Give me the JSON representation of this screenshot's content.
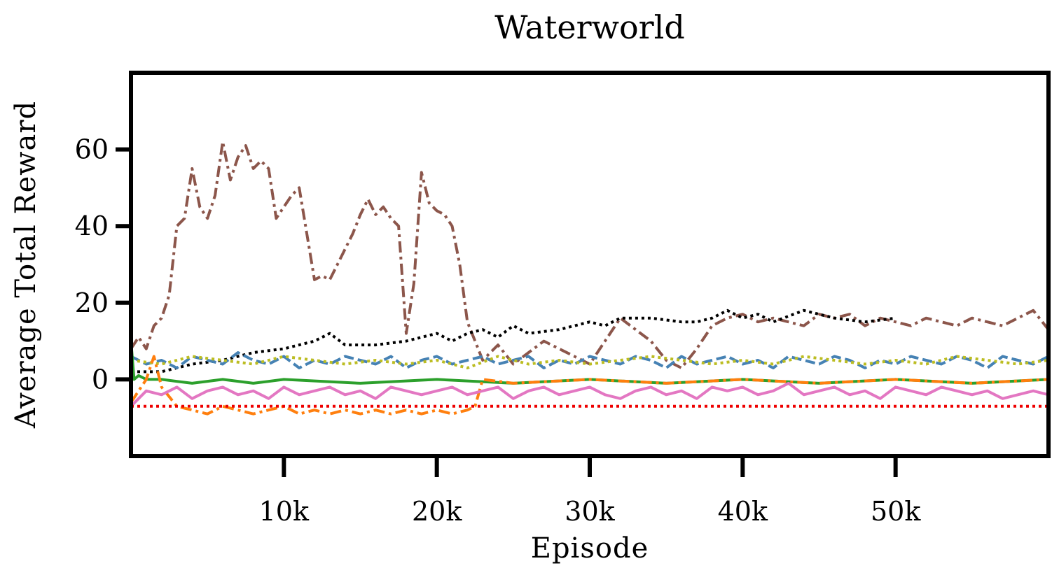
{
  "chart_data": {
    "type": "line",
    "title": "Waterworld",
    "xlabel": "Episode",
    "ylabel": "Average Total Reward",
    "xlim": [
      0,
      60000
    ],
    "ylim": [
      -20,
      80
    ],
    "x_ticks": [
      {
        "value": 10000,
        "label": "10k"
      },
      {
        "value": 20000,
        "label": "20k"
      },
      {
        "value": 30000,
        "label": "30k"
      },
      {
        "value": 40000,
        "label": "40k"
      },
      {
        "value": 50000,
        "label": "50k"
      }
    ],
    "y_ticks": [
      {
        "value": 0,
        "label": "0"
      },
      {
        "value": 20,
        "label": "20"
      },
      {
        "value": 40,
        "label": "40"
      },
      {
        "value": 60,
        "label": "60"
      }
    ],
    "grid": false,
    "legend": "none",
    "series": [
      {
        "color": "#8c564b",
        "dash": "dashdot",
        "x": [
          0,
          500,
          1000,
          1500,
          2000,
          2500,
          3000,
          3500,
          4000,
          4500,
          5000,
          5500,
          6000,
          6500,
          7000,
          7500,
          8000,
          8500,
          9000,
          9500,
          10000,
          10500,
          11000,
          11500,
          12000,
          12500,
          13000,
          13500,
          14000,
          14500,
          15000,
          15500,
          16000,
          16500,
          17000,
          17500,
          18000,
          18500,
          19000,
          19500,
          20000,
          20500,
          21000,
          21500,
          22000,
          22500,
          23000,
          24000,
          25000,
          26000,
          27000,
          28000,
          29000,
          30000,
          31000,
          32000,
          33000,
          34000,
          35000,
          36000,
          37000,
          38000,
          39000,
          40000,
          41000,
          42000,
          43000,
          44000,
          45000,
          46000,
          47000,
          48000,
          49000,
          50000,
          51000,
          52000,
          53000,
          54000,
          55000,
          56000,
          57000,
          58000,
          59000,
          60000
        ],
        "y": [
          8,
          11,
          8,
          14,
          16,
          22,
          40,
          42,
          55,
          45,
          42,
          48,
          62,
          52,
          58,
          61,
          55,
          57,
          55,
          42,
          45,
          48,
          50,
          38,
          26,
          27,
          26,
          30,
          34,
          38,
          43,
          47,
          43,
          45,
          42,
          40,
          12,
          25,
          54,
          46,
          44,
          43,
          40,
          30,
          15,
          10,
          5,
          9,
          4,
          7,
          10,
          8,
          6,
          4,
          10,
          16,
          13,
          10,
          5,
          3,
          8,
          14,
          16,
          17,
          15,
          16,
          15,
          14,
          17,
          16,
          17,
          14,
          16,
          15,
          14,
          16,
          15,
          14,
          16,
          15,
          14,
          16,
          18,
          13
        ]
      },
      {
        "color": "#000000",
        "dash": "dotted",
        "x": [
          0,
          2000,
          4000,
          6000,
          8000,
          10000,
          12000,
          13000,
          14000,
          16000,
          18000,
          20000,
          21000,
          22000,
          23000,
          24000,
          25000,
          26000,
          28000,
          30000,
          31000,
          32000,
          34000,
          36000,
          37000,
          38000,
          39000,
          40000,
          41000,
          42000,
          44000,
          46000,
          48000,
          50000
        ],
        "y": [
          2,
          2,
          4,
          5,
          7,
          8,
          10,
          12,
          9,
          9,
          10,
          12,
          10,
          12,
          13,
          11,
          14,
          12,
          13,
          15,
          14,
          16,
          16,
          15,
          15,
          16,
          18,
          16,
          17,
          15,
          18,
          16,
          15,
          16
        ]
      },
      {
        "color": "#4682b4",
        "dash": "dashed",
        "x": [
          0,
          1000,
          2000,
          3000,
          4000,
          5000,
          6000,
          7000,
          8000,
          9000,
          10000,
          11000,
          12000,
          13000,
          14000,
          15000,
          16000,
          17000,
          18000,
          19000,
          20000,
          21000,
          22000,
          23000,
          24000,
          25000,
          26000,
          27000,
          28000,
          29000,
          30000,
          31000,
          32000,
          33000,
          34000,
          35000,
          36000,
          37000,
          38000,
          39000,
          40000,
          41000,
          42000,
          43000,
          44000,
          45000,
          46000,
          47000,
          48000,
          49000,
          50000,
          51000,
          52000,
          53000,
          54000,
          55000,
          56000,
          57000,
          58000,
          59000,
          60000
        ],
        "y": [
          6,
          4,
          5,
          3,
          6,
          5,
          4,
          7,
          5,
          4,
          6,
          3,
          5,
          4,
          6,
          5,
          4,
          6,
          3,
          5,
          6,
          4,
          5,
          6,
          4,
          5,
          6,
          3,
          5,
          4,
          6,
          5,
          4,
          6,
          5,
          3,
          6,
          4,
          5,
          6,
          4,
          5,
          3,
          6,
          5,
          4,
          6,
          5,
          3,
          5,
          4,
          6,
          5,
          4,
          6,
          5,
          3,
          6,
          5,
          4,
          6
        ]
      },
      {
        "color": "#bcbd22",
        "dash": "dotted",
        "x": [
          0,
          2000,
          4000,
          6000,
          8000,
          10000,
          12000,
          14000,
          16000,
          18000,
          20000,
          22000,
          24000,
          26000,
          28000,
          30000,
          32000,
          34000,
          36000,
          38000,
          40000,
          42000,
          44000,
          46000,
          48000,
          50000,
          52000,
          54000,
          56000,
          58000,
          60000
        ],
        "y": [
          5,
          4,
          6,
          5,
          4,
          6,
          5,
          4,
          5,
          4,
          5,
          3,
          6,
          4,
          5,
          4,
          5,
          6,
          5,
          4,
          5,
          4,
          6,
          5,
          4,
          5,
          4,
          6,
          5,
          4,
          5
        ]
      },
      {
        "color": "#2ca02c",
        "dash": "solid",
        "x": [
          0,
          200,
          500,
          1000,
          2000,
          4000,
          6000,
          8000,
          10000,
          15000,
          20000,
          25000,
          30000,
          35000,
          40000,
          45000,
          50000,
          55000,
          60000
        ],
        "y": [
          10,
          0,
          1,
          0,
          0,
          -1,
          0,
          -1,
          0,
          -1,
          0,
          -1,
          0,
          -1,
          0,
          -1,
          0,
          -1,
          0
        ]
      },
      {
        "color": "#ff7f0e",
        "dash": "dashdot",
        "x": [
          0,
          1000,
          1500,
          2000,
          3000,
          4000,
          5000,
          6000,
          7000,
          8000,
          9000,
          10000,
          11000,
          12000,
          13000,
          14000,
          15000,
          16000,
          17000,
          18000,
          19000,
          20000,
          21000,
          22000,
          22500,
          23000,
          25000,
          30000,
          35000,
          40000,
          45000,
          50000,
          55000,
          60000
        ],
        "y": [
          -6,
          0,
          6,
          -2,
          -7,
          -8,
          -9,
          -7,
          -8,
          -9,
          -8,
          -7,
          -9,
          -8,
          -9,
          -8,
          -9,
          -8,
          -9,
          -8,
          -9,
          -8,
          -9,
          -8,
          -7,
          0,
          -1,
          0,
          -1,
          0,
          -1,
          0,
          -1,
          0
        ]
      },
      {
        "color": "#e377c2",
        "dash": "solid",
        "x": [
          0,
          1000,
          2000,
          3000,
          4000,
          5000,
          6000,
          7000,
          8000,
          9000,
          10000,
          11000,
          12000,
          13000,
          14000,
          15000,
          16000,
          17000,
          18000,
          19000,
          20000,
          21000,
          22000,
          23000,
          24000,
          25000,
          26000,
          27000,
          28000,
          29000,
          30000,
          31000,
          32000,
          33000,
          34000,
          35000,
          36000,
          37000,
          38000,
          39000,
          40000,
          41000,
          42000,
          43000,
          44000,
          45000,
          46000,
          47000,
          48000,
          49000,
          50000,
          51000,
          52000,
          53000,
          54000,
          55000,
          56000,
          57000,
          58000,
          59000,
          60000
        ],
        "y": [
          -7,
          -3,
          -4,
          -2,
          -5,
          -3,
          -2,
          -4,
          -3,
          -5,
          -2,
          -4,
          -3,
          -2,
          -4,
          -3,
          -5,
          -2,
          -3,
          -4,
          -3,
          -2,
          -4,
          -3,
          -2,
          -5,
          -3,
          -2,
          -4,
          -3,
          -2,
          -4,
          -5,
          -3,
          -2,
          -4,
          -3,
          -5,
          -2,
          -3,
          -2,
          -4,
          -3,
          -1,
          -4,
          -3,
          -2,
          -4,
          -3,
          -5,
          -2,
          -3,
          -4,
          -2,
          -3,
          -4,
          -3,
          -5,
          -4,
          -3,
          -4
        ]
      },
      {
        "color": "#ee0000",
        "dash": "dotted",
        "x": [
          0,
          60000
        ],
        "y": [
          -7,
          -7
        ]
      }
    ]
  }
}
